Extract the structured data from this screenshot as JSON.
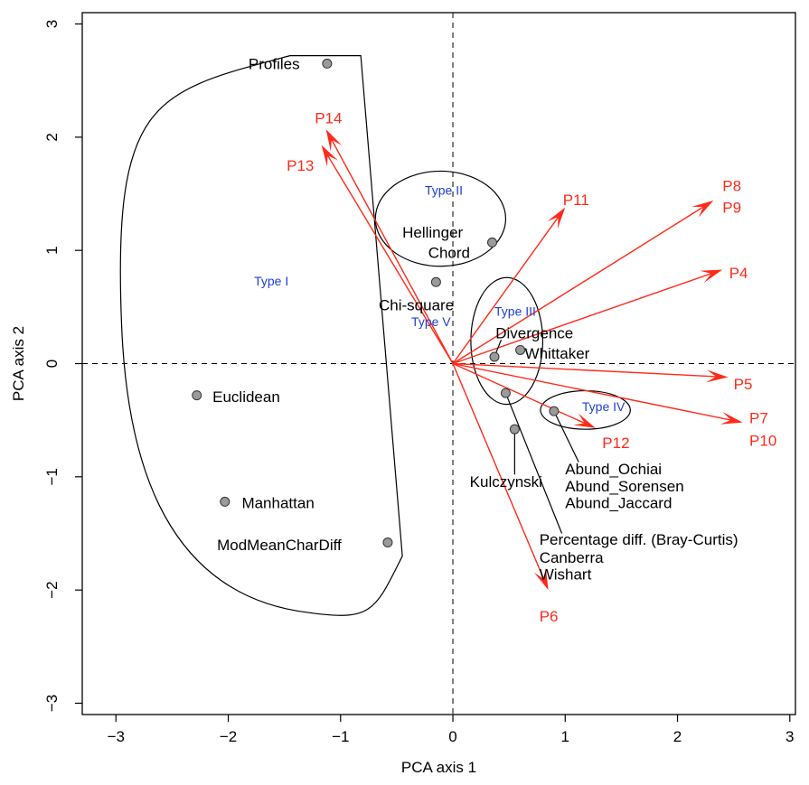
{
  "chart_data": {
    "type": "scatter",
    "xlabel": "PCA axis 1",
    "ylabel": "PCA axis 2",
    "xlim": [
      -3.3,
      3.05
    ],
    "ylim": [
      -3.1,
      3.1
    ],
    "xticks": [
      -3,
      -2,
      -1,
      0,
      1,
      2,
      3
    ],
    "yticks": [
      -3,
      -2,
      -1,
      0,
      1,
      2,
      3
    ],
    "grid": false,
    "reference_lines": {
      "x": 0,
      "y": 0,
      "style": "dashed"
    },
    "colors": {
      "arrows": "#ff2a1a",
      "groups": "#1f3fd1",
      "points": "#9a9a9a",
      "text": "#000000"
    },
    "points": [
      {
        "name": "Profiles",
        "x": -1.12,
        "y": 2.65
      },
      {
        "name": "Chi-square",
        "x": -0.15,
        "y": 0.72
      },
      {
        "name": "Chord",
        "x": 0.35,
        "y": 1.07
      },
      {
        "name": "Euclidean",
        "x": -2.28,
        "y": -0.28
      },
      {
        "name": "Manhattan",
        "x": -2.03,
        "y": -1.22
      },
      {
        "name": "ModMeanCharDiff",
        "x": -0.58,
        "y": -1.58
      },
      {
        "name": "Divergence",
        "x": 0.37,
        "y": 0.06
      },
      {
        "name": "Whittaker",
        "x": 0.6,
        "y": 0.12
      },
      {
        "name": "Percentage diff.",
        "x": 0.47,
        "y": -0.26
      },
      {
        "name": "Kulczynski",
        "x": 0.55,
        "y": -0.58
      },
      {
        "name": "Abund_Ochiai",
        "x": 0.9,
        "y": -0.42
      }
    ],
    "point_labels": [
      {
        "text": "Profiles",
        "x": -1.82,
        "y": 2.65
      },
      {
        "text": "Hellinger",
        "x": -0.45,
        "y": 1.16
      },
      {
        "text": "Chord",
        "x": -0.22,
        "y": 0.98
      },
      {
        "text": "Chi-square",
        "x": -0.66,
        "y": 0.52
      },
      {
        "text": "Euclidean",
        "x": -2.14,
        "y": -0.29
      },
      {
        "text": "Manhattan",
        "x": -1.88,
        "y": -1.23
      },
      {
        "text": "ModMeanCharDiff",
        "x": -2.1,
        "y": -1.6
      },
      {
        "text": "Divergence",
        "x": 0.38,
        "y": 0.27
      },
      {
        "text": "Whittaker",
        "x": 0.64,
        "y": 0.09
      },
      {
        "text": "Abund_Ochiai",
        "x": 1.0,
        "y": -0.93
      },
      {
        "text": "Abund_Sorensen",
        "x": 1.0,
        "y": -1.08
      },
      {
        "text": "Abund_Jaccard",
        "x": 1.0,
        "y": -1.23
      },
      {
        "text": "Kulczynski",
        "x": 0.15,
        "y": -1.04
      },
      {
        "text": "Percentage diff. (Bray-Curtis)",
        "x": 0.77,
        "y": -1.55
      },
      {
        "text": "Canberra",
        "x": 0.77,
        "y": -1.71
      },
      {
        "text": "Wishart",
        "x": 0.77,
        "y": -1.86
      }
    ],
    "leader_lines": [
      {
        "from": [
          0.37,
          0.06
        ],
        "to": [
          0.43,
          0.21
        ]
      },
      {
        "from": [
          0.55,
          -0.58
        ],
        "to": [
          0.55,
          -0.98
        ]
      },
      {
        "from": [
          0.47,
          -0.26
        ],
        "to": [
          0.97,
          -1.5
        ]
      },
      {
        "from": [
          0.9,
          -0.42
        ],
        "to": [
          1.12,
          -0.87
        ]
      }
    ],
    "arrows": [
      {
        "x": -1.13,
        "y": 2.07
      },
      {
        "x": -1.17,
        "y": 1.93
      },
      {
        "x": 1.0,
        "y": 1.38
      },
      {
        "x": 2.32,
        "y": 1.44
      },
      {
        "x": 2.4,
        "y": 0.83
      },
      {
        "x": 2.45,
        "y": -0.12
      },
      {
        "x": 2.58,
        "y": -0.52
      },
      {
        "x": 1.27,
        "y": -0.57
      },
      {
        "x": 0.85,
        "y": -2.0
      }
    ],
    "arrow_labels": [
      {
        "text": "P14",
        "x": -1.23,
        "y": 2.17
      },
      {
        "text": "P13",
        "x": -1.48,
        "y": 1.75
      },
      {
        "text": "P11",
        "x": 0.98,
        "y": 1.45
      },
      {
        "text": "P8",
        "x": 2.4,
        "y": 1.57
      },
      {
        "text": "P9",
        "x": 2.4,
        "y": 1.38
      },
      {
        "text": "P4",
        "x": 2.46,
        "y": 0.8
      },
      {
        "text": "P5",
        "x": 2.5,
        "y": -0.18
      },
      {
        "text": "P7",
        "x": 2.64,
        "y": -0.48
      },
      {
        "text": "P10",
        "x": 2.64,
        "y": -0.68
      },
      {
        "text": "P12",
        "x": 1.33,
        "y": -0.7
      },
      {
        "text": "P6",
        "x": 0.77,
        "y": -2.23
      }
    ],
    "group_labels": [
      {
        "text": "Type I",
        "x": -1.77,
        "y": 0.74
      },
      {
        "text": "Type II",
        "x": -0.25,
        "y": 1.54
      },
      {
        "text": "Type III",
        "x": 0.37,
        "y": 0.47
      },
      {
        "text": "Type IV",
        "x": 1.15,
        "y": -0.37
      },
      {
        "text": "Type V",
        "x": -0.37,
        "y": 0.38
      }
    ],
    "enclosures": [
      {
        "shape": "path",
        "points": [
          [
            -1.45,
            2.72
          ],
          [
            -0.82,
            2.72
          ],
          [
            -0.45,
            -1.7
          ],
          [
            -1.28,
            -2.2
          ],
          [
            -2.95,
            0.35
          ]
        ]
      },
      {
        "shape": "ellipse",
        "cx": -0.11,
        "cy": 1.28,
        "rx": 0.58,
        "ry": 0.42
      },
      {
        "shape": "ellipse",
        "cx": 0.48,
        "cy": 0.2,
        "rx": 0.32,
        "ry": 0.56
      },
      {
        "shape": "ellipse",
        "cx": 1.18,
        "cy": -0.41,
        "rx": 0.4,
        "ry": 0.17
      }
    ]
  }
}
